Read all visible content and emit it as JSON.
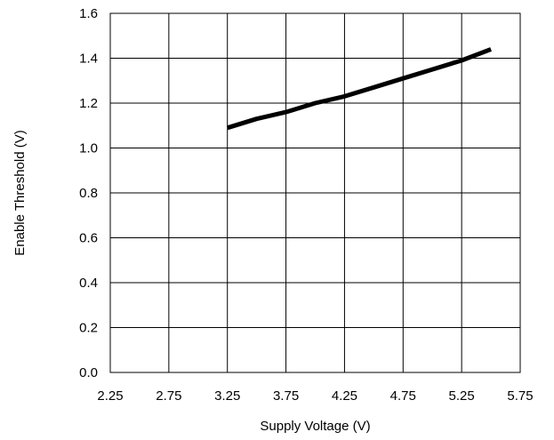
{
  "chart_data": {
    "type": "line",
    "title": "",
    "xlabel": "Supply Voltage (V)",
    "ylabel": "Enable Threshold (V)",
    "xlim": [
      2.25,
      5.75
    ],
    "ylim": [
      0.0,
      1.6
    ],
    "x_ticks": [
      "2.25",
      "2.75",
      "3.25",
      "3.75",
      "4.25",
      "4.75",
      "5.25",
      "5.75"
    ],
    "y_ticks": [
      "0.0",
      "0.2",
      "0.4",
      "0.6",
      "0.8",
      "1.0",
      "1.2",
      "1.4",
      "1.6"
    ],
    "grid": true,
    "series": [
      {
        "color": "#000000",
        "x": [
          3.25,
          3.5,
          3.75,
          4.0,
          4.25,
          4.5,
          4.75,
          5.0,
          5.25,
          5.5
        ],
        "y": [
          1.09,
          1.13,
          1.16,
          1.2,
          1.23,
          1.27,
          1.31,
          1.35,
          1.39,
          1.44
        ]
      }
    ]
  }
}
